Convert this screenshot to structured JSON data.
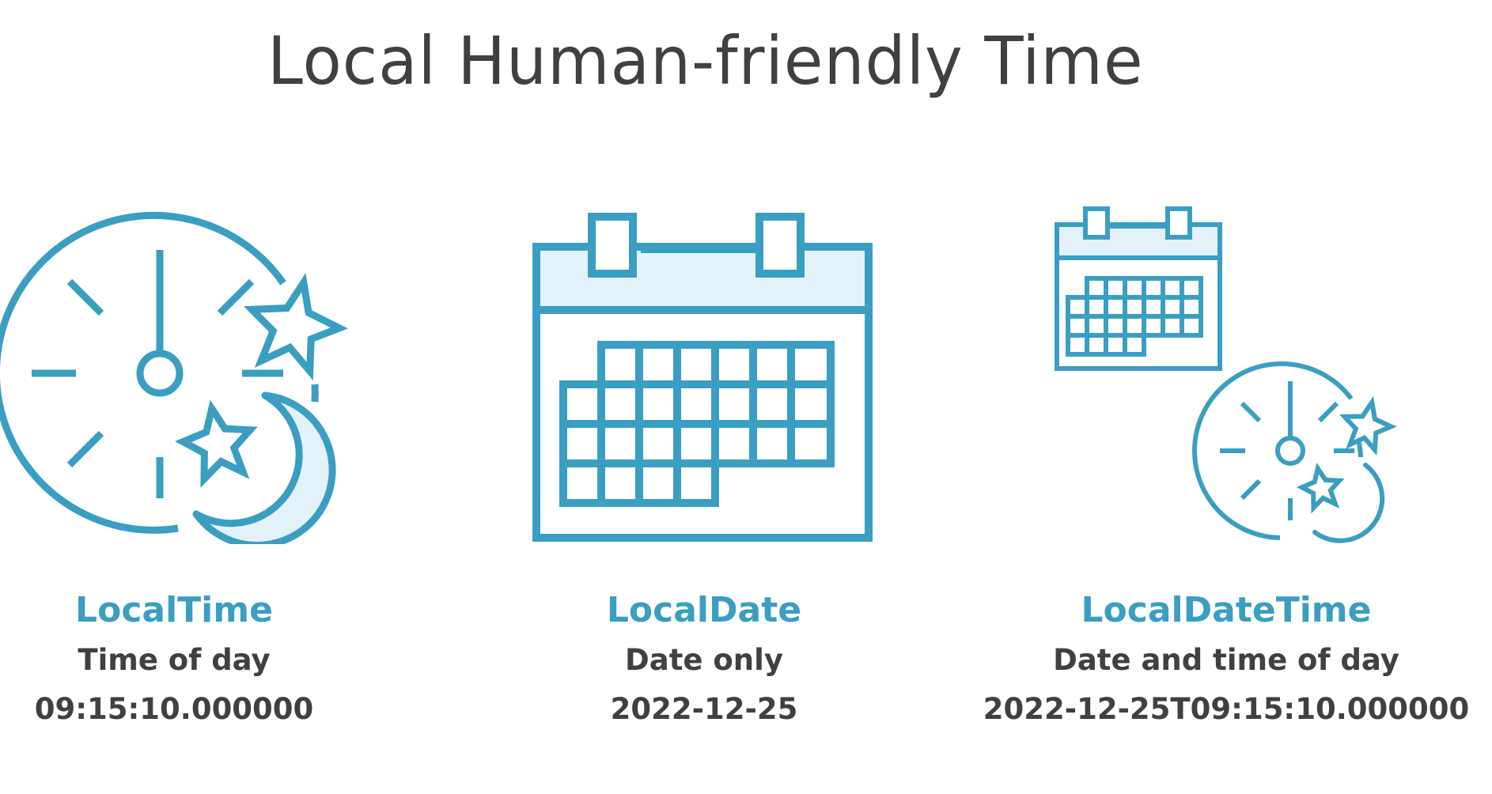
{
  "title": "Local Human-friendly Time",
  "accent_color": "#3a9ec2",
  "light_fill_color": "#e3f2f8",
  "text_color": "#404040",
  "cards": [
    {
      "icon": "clock-night-icon",
      "name": "LocalTime",
      "description": "Time of day",
      "example": "09:15:10.000000"
    },
    {
      "icon": "calendar-icon",
      "name": "LocalDate",
      "description": "Date only",
      "example": "2022-12-25"
    },
    {
      "icon": "calendar-clock-icon",
      "name": "LocalDateTime",
      "description": "Date and time of day",
      "example": "2022-12-25T09:15:10.000000"
    }
  ]
}
